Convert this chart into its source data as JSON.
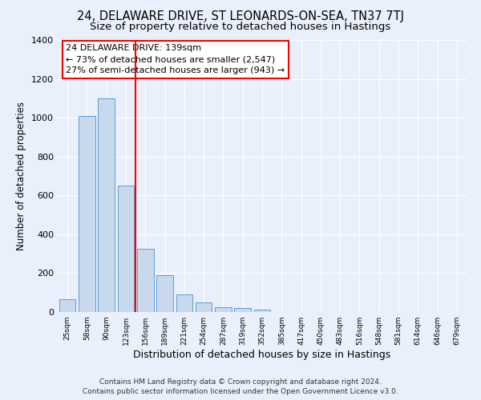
{
  "title1": "24, DELAWARE DRIVE, ST LEONARDS-ON-SEA, TN37 7TJ",
  "title2": "Size of property relative to detached houses in Hastings",
  "xlabel": "Distribution of detached houses by size in Hastings",
  "ylabel": "Number of detached properties",
  "categories": [
    "25sqm",
    "58sqm",
    "90sqm",
    "123sqm",
    "156sqm",
    "189sqm",
    "221sqm",
    "254sqm",
    "287sqm",
    "319sqm",
    "352sqm",
    "385sqm",
    "417sqm",
    "450sqm",
    "483sqm",
    "516sqm",
    "548sqm",
    "581sqm",
    "614sqm",
    "646sqm",
    "679sqm"
  ],
  "values": [
    65,
    1010,
    1100,
    650,
    325,
    190,
    90,
    50,
    25,
    20,
    12,
    0,
    0,
    0,
    0,
    0,
    0,
    0,
    0,
    0,
    0
  ],
  "bar_color": "#c9d9ed",
  "bar_edge_color": "#5b9bd5",
  "red_line_x": 3.5,
  "annotation_line1": "24 DELAWARE DRIVE: 139sqm",
  "annotation_line2": "← 73% of detached houses are smaller (2,547)",
  "annotation_line3": "27% of semi-detached houses are larger (943) →",
  "ylim": [
    0,
    1400
  ],
  "yticks": [
    0,
    200,
    400,
    600,
    800,
    1000,
    1200,
    1400
  ],
  "footer1": "Contains HM Land Registry data © Crown copyright and database right 2024.",
  "footer2": "Contains public sector information licensed under the Open Government Licence v3.0.",
  "bg_color": "#eaf0fb",
  "grid_color": "#ffffff",
  "title1_fontsize": 10.5,
  "title2_fontsize": 9.5,
  "xlabel_fontsize": 9,
  "ylabel_fontsize": 8.5,
  "footer_fontsize": 6.5
}
